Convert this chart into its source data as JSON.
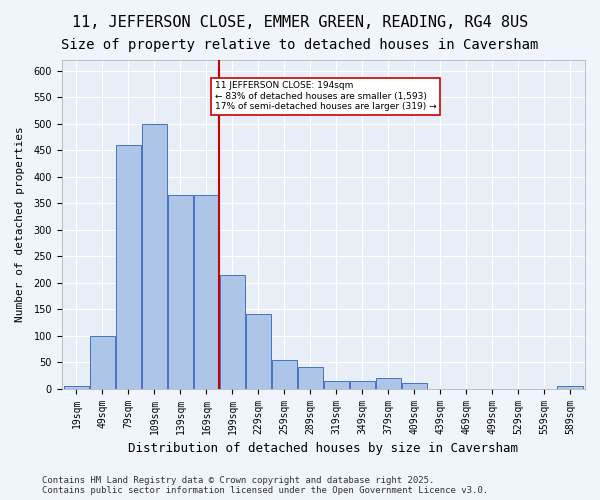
{
  "title1": "11, JEFFERSON CLOSE, EMMER GREEN, READING, RG4 8US",
  "title2": "Size of property relative to detached houses in Caversham",
  "xlabel": "Distribution of detached houses by size in Caversham",
  "ylabel": "Number of detached properties",
  "bin_edges": [
    19,
    49,
    79,
    109,
    139,
    169,
    199,
    229,
    259,
    289,
    319,
    349,
    379,
    409,
    439,
    469,
    499,
    529,
    559,
    589,
    619
  ],
  "bar_heights": [
    5,
    100,
    460,
    500,
    365,
    365,
    215,
    140,
    55,
    40,
    15,
    15,
    20,
    10,
    0,
    0,
    0,
    0,
    0,
    5
  ],
  "bar_color": "#adc6e8",
  "bar_edge_color": "#4472c4",
  "bg_color": "#e8eef7",
  "grid_color": "#ffffff",
  "vline_x": 199,
  "vline_color": "#cc0000",
  "annotation_text": "11 JEFFERSON CLOSE: 194sqm\n← 83% of detached houses are smaller (1,593)\n17% of semi-detached houses are larger (319) →",
  "annotation_box_color": "#ffffff",
  "annotation_box_edge": "#cc0000",
  "footnote": "Contains HM Land Registry data © Crown copyright and database right 2025.\nContains public sector information licensed under the Open Government Licence v3.0.",
  "ylim": [
    0,
    620
  ],
  "yticks": [
    0,
    50,
    100,
    150,
    200,
    250,
    300,
    350,
    400,
    450,
    500,
    550,
    600
  ],
  "title1_fontsize": 11,
  "title2_fontsize": 10,
  "xlabel_fontsize": 9,
  "ylabel_fontsize": 8,
  "tick_fontsize": 7,
  "footnote_fontsize": 6.5
}
